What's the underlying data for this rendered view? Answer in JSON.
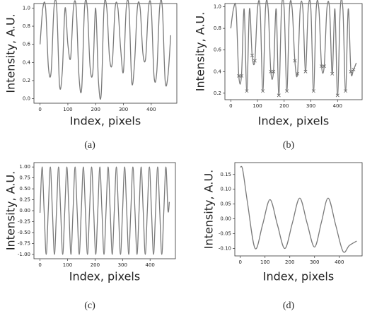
{
  "chart_data": [
    {
      "type": "line",
      "xlabel": "Index, pixels",
      "ylabel": "Intensity, A.U.",
      "caption": "(a)",
      "color": "#7a7a7a",
      "x": [
        0,
        10,
        20,
        30,
        40,
        50,
        60,
        70,
        80,
        90,
        100,
        110,
        120,
        130,
        140,
        150,
        160,
        170,
        180,
        190,
        200,
        210,
        220,
        230,
        240,
        250,
        260,
        270,
        280,
        290,
        300,
        310,
        320,
        330,
        340,
        350,
        360,
        370,
        380,
        390,
        400,
        410,
        420,
        430,
        440,
        450,
        460,
        470
      ],
      "values": [
        0.6,
        1,
        1,
        0.35,
        0.3,
        1,
        1,
        0.15,
        0.3,
        1,
        0.6,
        0.45,
        1,
        1,
        0.25,
        0.12,
        1,
        1,
        0.35,
        0.3,
        1,
        0.2,
        0.05,
        1,
        1,
        0.45,
        0.4,
        1,
        1,
        0.55,
        0.3,
        1,
        1,
        0.18,
        0.4,
        1,
        1,
        0.5,
        0.45,
        1,
        1,
        0.25,
        0.3,
        1,
        1,
        0.2,
        0.25,
        0.7
      ],
      "xlim": [
        -22,
        492
      ],
      "xticks": [
        0,
        100,
        200,
        300,
        400
      ],
      "ylim": [
        -0.05,
        1.05
      ],
      "yticks": [
        {
          "value": 0,
          "label": "0.0"
        },
        {
          "value": 0.2,
          "label": "0.2"
        },
        {
          "value": 0.4,
          "label": "0.4"
        },
        {
          "value": 0.6,
          "label": "0.6"
        },
        {
          "value": 0.8,
          "label": "0.8"
        },
        {
          "value": 1,
          "label": "1.0"
        }
      ]
    },
    {
      "type": "line",
      "xlabel": "Index, pixels",
      "ylabel": "Intensity, A.U.",
      "caption": "(b)",
      "color": "#7a7a7a",
      "x": [
        0,
        10,
        20,
        30,
        40,
        50,
        60,
        70,
        80,
        90,
        100,
        110,
        120,
        130,
        140,
        150,
        160,
        170,
        180,
        190,
        200,
        210,
        220,
        230,
        240,
        250,
        260,
        270,
        280,
        290,
        300,
        310,
        320,
        330,
        340,
        350,
        360,
        370,
        380,
        390,
        400,
        410,
        420,
        430,
        440,
        450,
        460,
        470
      ],
      "values": [
        0.8,
        0.98,
        0.98,
        0.36,
        0.36,
        0.98,
        0.22,
        0.98,
        0.55,
        0.5,
        0.98,
        0.98,
        0.22,
        0.98,
        0.98,
        0.4,
        0.4,
        0.98,
        0.18,
        0.98,
        0.98,
        0.22,
        0.98,
        0.98,
        0.5,
        0.38,
        0.98,
        0.98,
        0.4,
        0.98,
        0.98,
        0.22,
        0.98,
        0.98,
        0.45,
        0.45,
        0.98,
        0.98,
        0.38,
        0.98,
        0.18,
        0.98,
        0.98,
        0.22,
        0.98,
        0.4,
        0.42,
        0.48
      ],
      "markers": {
        "color": "#666666",
        "x": [
          30,
          40,
          60,
          80,
          90,
          120,
          150,
          160,
          180,
          210,
          240,
          250,
          280,
          310,
          340,
          350,
          380,
          400,
          430,
          450,
          460
        ],
        "values": [
          0.36,
          0.36,
          0.22,
          0.55,
          0.5,
          0.22,
          0.4,
          0.4,
          0.18,
          0.22,
          0.5,
          0.38,
          0.4,
          0.22,
          0.45,
          0.45,
          0.38,
          0.18,
          0.22,
          0.4,
          0.42
        ]
      },
      "xlim": [
        -22,
        492
      ],
      "xticks": [
        0,
        100,
        200,
        300,
        400
      ],
      "ylim": [
        0.14,
        1.03
      ],
      "yticks": [
        {
          "value": 0.2,
          "label": "0.2"
        },
        {
          "value": 0.4,
          "label": "0.4"
        },
        {
          "value": 0.6,
          "label": "0.6"
        },
        {
          "value": 0.8,
          "label": "0.8"
        },
        {
          "value": 1,
          "label": "1.0"
        }
      ]
    },
    {
      "type": "line",
      "xlabel": "Index, pixels",
      "ylabel": "Intensity, A.U.",
      "caption": "(c)",
      "color": "#7a7a7a",
      "x": [
        0,
        7.5,
        15,
        22.5,
        30,
        37.5,
        45,
        52.5,
        60,
        67.5,
        75,
        82.5,
        90,
        97.5,
        105,
        112.5,
        120,
        127.5,
        135,
        142.5,
        150,
        157.5,
        165,
        172.5,
        180,
        187.5,
        195,
        202.5,
        210,
        217.5,
        225,
        232.5,
        240,
        247.5,
        255,
        262.5,
        270,
        277.5,
        285,
        292.5,
        300,
        307.5,
        315,
        322.5,
        330,
        337.5,
        345,
        352.5,
        360,
        367.5,
        375,
        382.5,
        390,
        397.5,
        405,
        412.5,
        420,
        427.5,
        435,
        442.5,
        450,
        457.5,
        465,
        470
      ],
      "values": [
        -0.05,
        1,
        0,
        -1,
        0,
        1,
        0,
        -1,
        0,
        1,
        0,
        -1,
        0,
        1,
        0,
        -1,
        0,
        1,
        0,
        -1,
        0,
        1,
        0,
        -1,
        0,
        1,
        0,
        -1,
        0,
        1,
        0,
        -1,
        0,
        1,
        0,
        -1,
        0,
        1,
        0,
        -1,
        0,
        1,
        0,
        -1,
        0,
        1,
        0,
        -1,
        0,
        1,
        0,
        -1,
        0,
        1,
        0,
        -1,
        0,
        1,
        0,
        -1,
        0,
        1,
        0,
        0.2
      ],
      "xlim": [
        -22,
        492
      ],
      "xticks": [
        0,
        100,
        200,
        300,
        400
      ],
      "ylim": [
        -1.1,
        1.1
      ],
      "yticks": [
        {
          "value": -1,
          "label": "-1.00"
        },
        {
          "value": -0.75,
          "label": "-0.75"
        },
        {
          "value": -0.5,
          "label": "-0.50"
        },
        {
          "value": -0.25,
          "label": "-0.25"
        },
        {
          "value": 0,
          "label": "0.00"
        },
        {
          "value": 0.25,
          "label": "0.25"
        },
        {
          "value": 0.5,
          "label": "0.50"
        },
        {
          "value": 0.75,
          "label": "0.75"
        },
        {
          "value": 1,
          "label": "1.00"
        }
      ]
    },
    {
      "type": "line",
      "xlabel": "Index, pixels",
      "ylabel": "Intensity, A.U.",
      "caption": "(d)",
      "color": "#7a7a7a",
      "x": [
        0,
        10,
        30,
        60,
        90,
        120,
        150,
        180,
        210,
        240,
        270,
        300,
        328,
        355,
        385,
        415,
        440,
        470
      ],
      "values": [
        0.175,
        0.165,
        0.05,
        -0.1,
        -0.02,
        0.065,
        -0.02,
        -0.1,
        -0.015,
        0.07,
        -0.015,
        -0.095,
        -0.01,
        0.07,
        -0.02,
        -0.11,
        -0.09,
        -0.075
      ],
      "xlim": [
        -22,
        492
      ],
      "xticks": [
        0,
        100,
        200,
        300,
        400
      ],
      "ylim": [
        -0.125,
        0.19
      ],
      "yticks": [
        {
          "value": -0.1,
          "label": "-0.10"
        },
        {
          "value": -0.05,
          "label": "-0.05"
        },
        {
          "value": 0,
          "label": "0.00"
        },
        {
          "value": 0.05,
          "label": "0.05"
        },
        {
          "value": 0.1,
          "label": "0.10"
        },
        {
          "value": 0.15,
          "label": "0.15"
        }
      ]
    }
  ]
}
